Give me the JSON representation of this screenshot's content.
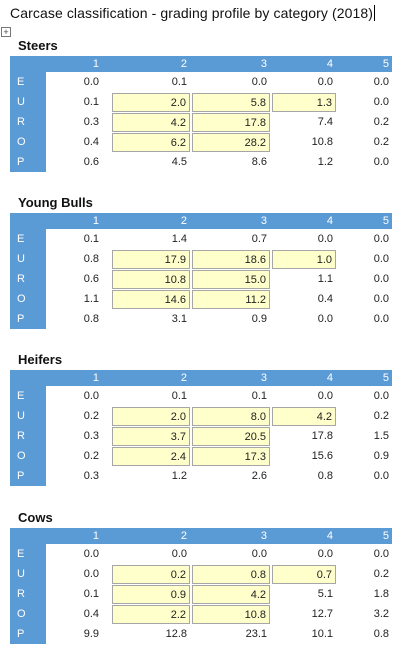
{
  "doc": {
    "title": "Carcase classification - grading profile by category (2018)",
    "columns": [
      "1",
      "2",
      "3",
      "4",
      "5"
    ],
    "sections": [
      {
        "name": "Steers",
        "rows": [
          {
            "label": "E",
            "values": [
              "0.0",
              "0.1",
              "0.0",
              "0.0",
              "0.0"
            ]
          },
          {
            "label": "U",
            "values": [
              "0.1",
              "2.0",
              "5.8",
              "1.3",
              "0.0"
            ]
          },
          {
            "label": "R",
            "values": [
              "0.3",
              "4.2",
              "17.8",
              "7.4",
              "0.2"
            ]
          },
          {
            "label": "O",
            "values": [
              "0.4",
              "6.2",
              "28.2",
              "10.8",
              "0.2"
            ]
          },
          {
            "label": "P",
            "values": [
              "0.6",
              "4.5",
              "8.6",
              "1.2",
              "0.0"
            ]
          }
        ]
      },
      {
        "name": "Young Bulls",
        "rows": [
          {
            "label": "E",
            "values": [
              "0.1",
              "1.4",
              "0.7",
              "0.0",
              "0.0"
            ]
          },
          {
            "label": "U",
            "values": [
              "0.8",
              "17.9",
              "18.6",
              "1.0",
              "0.0"
            ]
          },
          {
            "label": "R",
            "values": [
              "0.6",
              "10.8",
              "15.0",
              "1.1",
              "0.0"
            ]
          },
          {
            "label": "O",
            "values": [
              "1.1",
              "14.6",
              "11.2",
              "0.4",
              "0.0"
            ]
          },
          {
            "label": "P",
            "values": [
              "0.8",
              "3.1",
              "0.9",
              "0.0",
              "0.0"
            ]
          }
        ]
      },
      {
        "name": "Heifers",
        "rows": [
          {
            "label": "E",
            "values": [
              "0.0",
              "0.1",
              "0.1",
              "0.0",
              "0.0"
            ]
          },
          {
            "label": "U",
            "values": [
              "0.2",
              "2.0",
              "8.0",
              "4.2",
              "0.2"
            ]
          },
          {
            "label": "R",
            "values": [
              "0.3",
              "3.7",
              "20.5",
              "17.8",
              "1.5"
            ]
          },
          {
            "label": "O",
            "values": [
              "0.2",
              "2.4",
              "17.3",
              "15.6",
              "0.9"
            ]
          },
          {
            "label": "P",
            "values": [
              "0.3",
              "1.2",
              "2.6",
              "0.8",
              "0.0"
            ]
          }
        ]
      },
      {
        "name": "Cows",
        "rows": [
          {
            "label": "E",
            "values": [
              "0.0",
              "0.0",
              "0.0",
              "0.0",
              "0.0"
            ]
          },
          {
            "label": "U",
            "values": [
              "0.0",
              "0.2",
              "0.8",
              "0.7",
              "0.2"
            ]
          },
          {
            "label": "R",
            "values": [
              "0.1",
              "0.9",
              "4.2",
              "5.1",
              "1.8"
            ]
          },
          {
            "label": "O",
            "values": [
              "0.4",
              "2.2",
              "10.8",
              "12.7",
              "3.2"
            ]
          },
          {
            "label": "P",
            "values": [
              "9.9",
              "12.8",
              "23.1",
              "10.1",
              "0.8"
            ]
          }
        ]
      }
    ]
  },
  "colors": {
    "header_blue": "#5b9bd5",
    "highlight_yellow": "#ffffcc"
  },
  "icons": {
    "table_handle": "move-handle-icon"
  }
}
